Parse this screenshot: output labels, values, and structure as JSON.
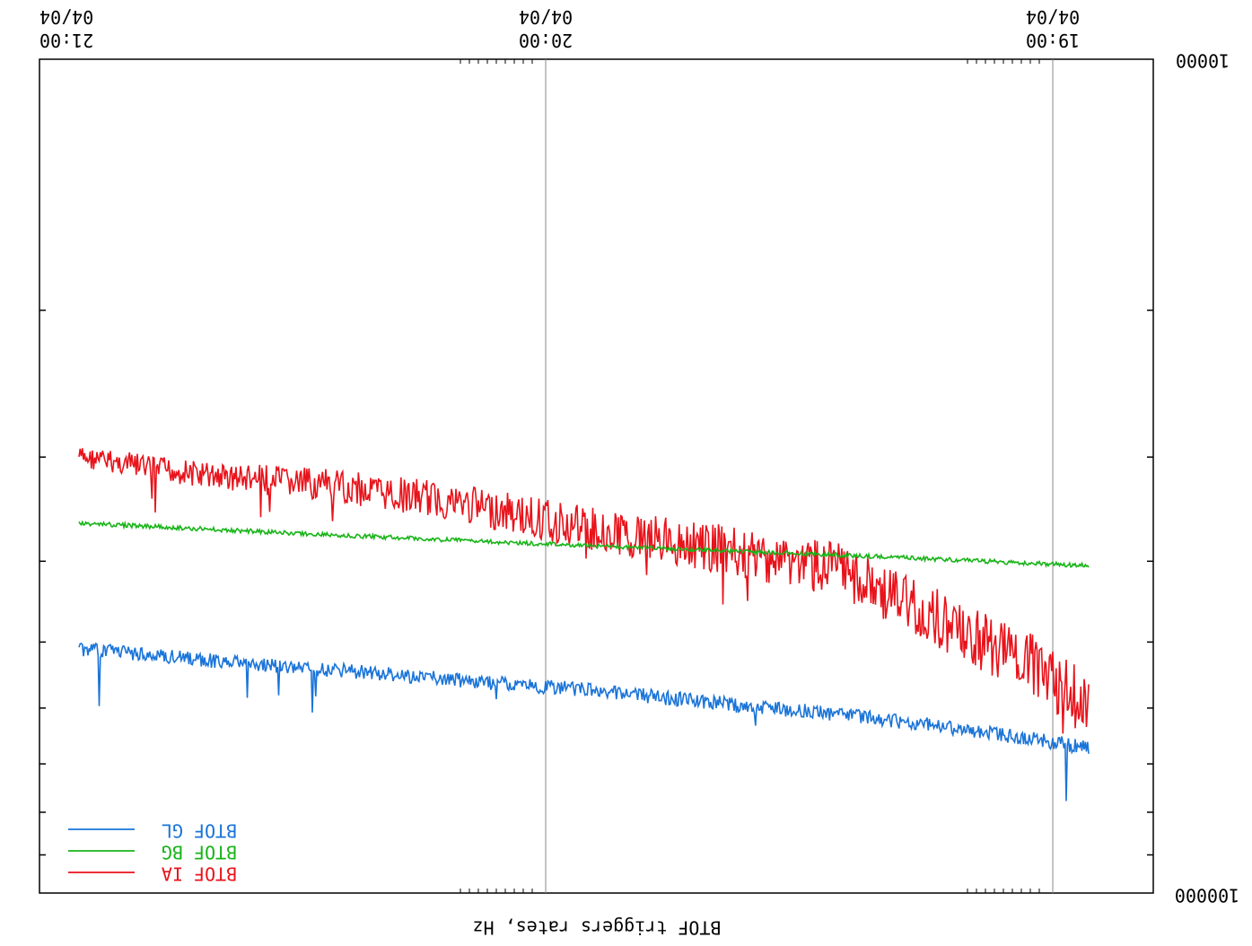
{
  "chart_data": {
    "type": "line",
    "orientation_note_free": true,
    "ylabel": "BTOF triggers rates, Hz",
    "y_scale": "log",
    "y_top_label": "10000",
    "y_bottom_label": "100000",
    "ylim": [
      10000,
      100000
    ],
    "x_ticks": [
      {
        "date": "04/04",
        "time": "21:00"
      },
      {
        "date": "04/04",
        "time": "20:00"
      },
      {
        "date": "04/04",
        "time": "19:00"
      }
    ],
    "series": [
      {
        "name": "BTOF IA",
        "color": "#e8131b",
        "points": [
          [
            0.0,
            30000
          ],
          [
            0.12,
            31500
          ],
          [
            0.25,
            32500
          ],
          [
            0.37,
            34000
          ],
          [
            0.5,
            36500
          ],
          [
            0.62,
            38500
          ],
          [
            0.75,
            41000
          ],
          [
            0.85,
            47000
          ],
          [
            0.95,
            54000
          ],
          [
            1.0,
            60000
          ]
        ]
      },
      {
        "name": "BTOF BG",
        "color": "#18b418",
        "points": [
          [
            0.0,
            36000
          ],
          [
            0.25,
            37200
          ],
          [
            0.5,
            38300
          ],
          [
            0.75,
            39300
          ],
          [
            1.0,
            40500
          ]
        ]
      },
      {
        "name": "BTOF GL",
        "color": "#1a74d8",
        "points": [
          [
            0.0,
            51000
          ],
          [
            0.12,
            52500
          ],
          [
            0.25,
            54000
          ],
          [
            0.37,
            55500
          ],
          [
            0.5,
            57000
          ],
          [
            0.62,
            59000
          ],
          [
            0.75,
            61000
          ],
          [
            0.85,
            63000
          ],
          [
            0.95,
            65500
          ],
          [
            1.0,
            67000
          ]
        ]
      }
    ]
  }
}
